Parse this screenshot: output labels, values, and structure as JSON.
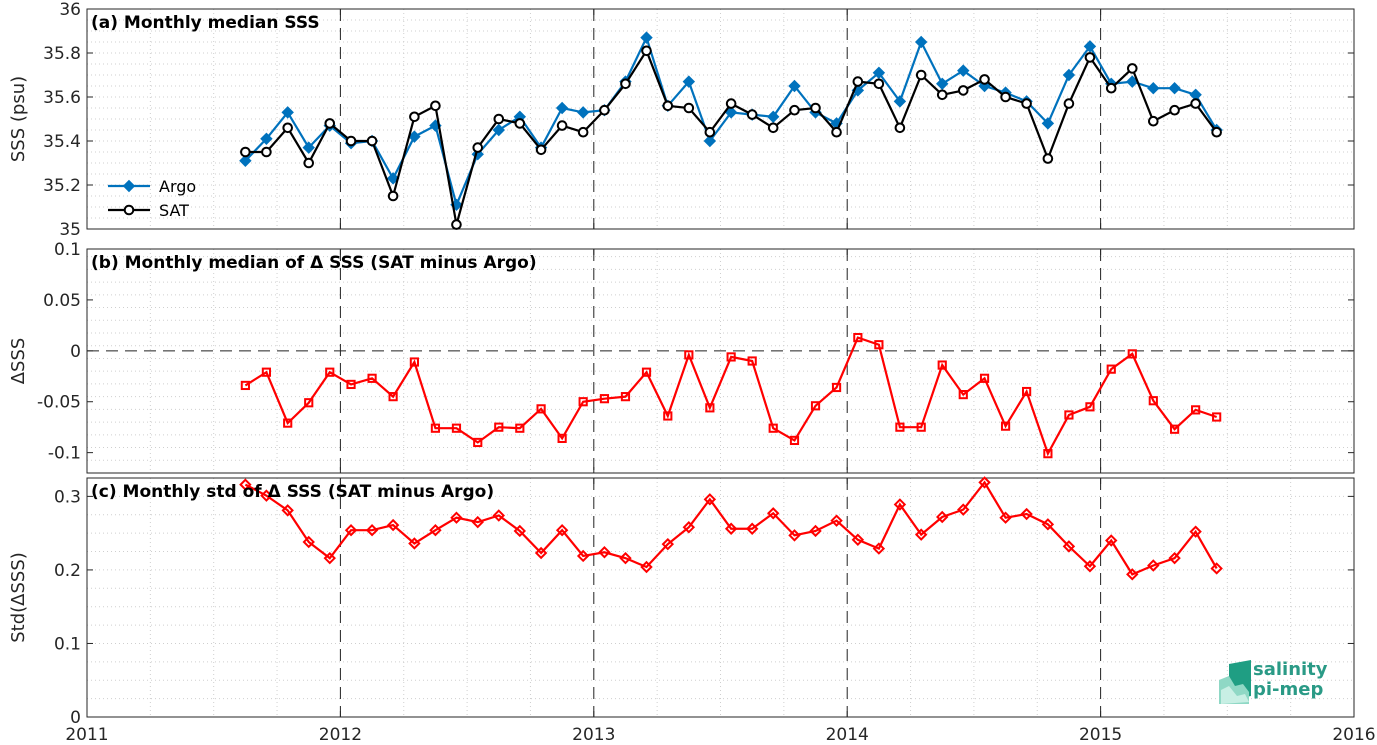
{
  "chart_data": [
    {
      "type": "line",
      "title": "(a) Monthly median SSS",
      "ylabel": "SSS (psu)",
      "xlim": [
        2011,
        2016
      ],
      "ylim": [
        35,
        36
      ],
      "yticks": [
        35,
        35.2,
        35.4,
        35.6,
        35.8,
        36
      ],
      "ytick_labels": [
        "35",
        "35.2",
        "35.4",
        "35.6",
        "35.8",
        "36"
      ],
      "grid": true,
      "legend": "bottom-left",
      "series": [
        {
          "name": "Argo",
          "color": "#0072bd",
          "marker": "diamond",
          "x": [
            2011.625,
            2011.708,
            2011.792,
            2011.875,
            2011.958,
            2012.042,
            2012.125,
            2012.208,
            2012.292,
            2012.375,
            2012.458,
            2012.542,
            2012.625,
            2012.708,
            2012.792,
            2012.875,
            2012.958,
            2013.042,
            2013.125,
            2013.208,
            2013.292,
            2013.375,
            2013.458,
            2013.542,
            2013.625,
            2013.708,
            2013.792,
            2013.875,
            2013.958,
            2014.042,
            2014.125,
            2014.208,
            2014.292,
            2014.375,
            2014.458,
            2014.542,
            2014.625,
            2014.708,
            2014.792,
            2014.875,
            2014.958,
            2015.042,
            2015.125,
            2015.208,
            2015.292,
            2015.375,
            2015.458
          ],
          "values": [
            35.31,
            35.41,
            35.53,
            35.37,
            35.47,
            35.39,
            35.4,
            35.23,
            35.42,
            35.47,
            35.11,
            35.34,
            35.45,
            35.51,
            35.37,
            35.55,
            35.53,
            35.54,
            35.67,
            35.87,
            35.56,
            35.67,
            35.4,
            35.53,
            35.52,
            35.51,
            35.65,
            35.53,
            35.48,
            35.63,
            35.71,
            35.58,
            35.85,
            35.66,
            35.72,
            35.65,
            35.62,
            35.58,
            35.48,
            35.7,
            35.83,
            35.66,
            35.67,
            35.64,
            35.64,
            35.61,
            35.45
          ]
        },
        {
          "name": "SAT",
          "color": "#000000",
          "marker": "circle",
          "x": [
            2011.625,
            2011.708,
            2011.792,
            2011.875,
            2011.958,
            2012.042,
            2012.125,
            2012.208,
            2012.292,
            2012.375,
            2012.458,
            2012.542,
            2012.625,
            2012.708,
            2012.792,
            2012.875,
            2012.958,
            2013.042,
            2013.125,
            2013.208,
            2013.292,
            2013.375,
            2013.458,
            2013.542,
            2013.625,
            2013.708,
            2013.792,
            2013.875,
            2013.958,
            2014.042,
            2014.125,
            2014.208,
            2014.292,
            2014.375,
            2014.458,
            2014.542,
            2014.625,
            2014.708,
            2014.792,
            2014.875,
            2014.958,
            2015.042,
            2015.125,
            2015.208,
            2015.292,
            2015.375,
            2015.458
          ],
          "values": [
            35.35,
            35.35,
            35.46,
            35.3,
            35.48,
            35.4,
            35.4,
            35.15,
            35.51,
            35.56,
            35.02,
            35.37,
            35.5,
            35.48,
            35.36,
            35.47,
            35.44,
            35.54,
            35.66,
            35.81,
            35.56,
            35.55,
            35.44,
            35.57,
            35.52,
            35.46,
            35.54,
            35.55,
            35.44,
            35.67,
            35.66,
            35.46,
            35.7,
            35.61,
            35.63,
            35.68,
            35.6,
            35.57,
            35.32,
            35.57,
            35.78,
            35.64,
            35.73,
            35.49,
            35.54,
            35.57,
            35.44
          ]
        }
      ]
    },
    {
      "type": "line",
      "title": "(b) Monthly median of Δ SSS (SAT minus Argo)",
      "ylabel": "ΔSSS",
      "xlim": [
        2011,
        2016
      ],
      "ylim": [
        -0.12,
        0.1
      ],
      "yticks": [
        -0.1,
        -0.05,
        0,
        0.05,
        0.1
      ],
      "ytick_labels": [
        "-0.1",
        "-0.05",
        "0",
        "0.05",
        "0.1"
      ],
      "grid": true,
      "series": [
        {
          "color": "#ff0000",
          "marker": "square",
          "x": [
            2011.625,
            2011.708,
            2011.792,
            2011.875,
            2011.958,
            2012.042,
            2012.125,
            2012.208,
            2012.292,
            2012.375,
            2012.458,
            2012.542,
            2012.625,
            2012.708,
            2012.792,
            2012.875,
            2012.958,
            2013.042,
            2013.125,
            2013.208,
            2013.292,
            2013.375,
            2013.458,
            2013.542,
            2013.625,
            2013.708,
            2013.792,
            2013.875,
            2013.958,
            2014.042,
            2014.125,
            2014.208,
            2014.292,
            2014.375,
            2014.458,
            2014.542,
            2014.625,
            2014.708,
            2014.792,
            2014.875,
            2014.958,
            2015.042,
            2015.125,
            2015.208,
            2015.292,
            2015.375,
            2015.458
          ],
          "values": [
            -0.034,
            -0.021,
            -0.071,
            -0.051,
            -0.021,
            -0.033,
            -0.027,
            -0.045,
            -0.011,
            -0.076,
            -0.076,
            -0.09,
            -0.075,
            -0.076,
            -0.057,
            -0.086,
            -0.05,
            -0.047,
            -0.045,
            -0.021,
            -0.064,
            -0.004,
            -0.056,
            -0.006,
            -0.01,
            -0.076,
            -0.088,
            -0.054,
            -0.036,
            0.013,
            0.006,
            -0.075,
            -0.075,
            -0.014,
            -0.043,
            -0.027,
            -0.074,
            -0.04,
            -0.101,
            -0.063,
            -0.055,
            -0.018,
            -0.003,
            -0.049,
            -0.077,
            -0.058,
            -0.065
          ]
        }
      ]
    },
    {
      "type": "line",
      "title": "(c) Monthly std of Δ SSS (SAT minus Argo)",
      "ylabel": "Std(ΔSSS)",
      "xlim": [
        2011,
        2016
      ],
      "ylim": [
        0,
        0.325
      ],
      "yticks": [
        0,
        0.1,
        0.2,
        0.3
      ],
      "ytick_labels": [
        "0",
        "0.1",
        "0.2",
        "0.3"
      ],
      "xticks": [
        2011,
        2012,
        2013,
        2014,
        2015,
        2016
      ],
      "xtick_labels": [
        "2011",
        "2012",
        "2013",
        "2014",
        "2015",
        "2016"
      ],
      "grid": true,
      "series": [
        {
          "color": "#ff0000",
          "marker": "diamond",
          "x": [
            2011.625,
            2011.708,
            2011.792,
            2011.875,
            2011.958,
            2012.042,
            2012.125,
            2012.208,
            2012.292,
            2012.375,
            2012.458,
            2012.542,
            2012.625,
            2012.708,
            2012.792,
            2012.875,
            2012.958,
            2013.042,
            2013.125,
            2013.208,
            2013.292,
            2013.375,
            2013.458,
            2013.542,
            2013.625,
            2013.708,
            2013.792,
            2013.875,
            2013.958,
            2014.042,
            2014.125,
            2014.208,
            2014.292,
            2014.375,
            2014.458,
            2014.542,
            2014.625,
            2014.708,
            2014.792,
            2014.875,
            2014.958,
            2015.042,
            2015.125,
            2015.208,
            2015.292,
            2015.375,
            2015.458
          ],
          "values": [
            0.316,
            0.301,
            0.281,
            0.238,
            0.216,
            0.254,
            0.254,
            0.261,
            0.236,
            0.254,
            0.271,
            0.265,
            0.274,
            0.253,
            0.223,
            0.254,
            0.219,
            0.224,
            0.216,
            0.204,
            0.235,
            0.258,
            0.296,
            0.256,
            0.256,
            0.277,
            0.247,
            0.253,
            0.267,
            0.241,
            0.229,
            0.289,
            0.248,
            0.272,
            0.282,
            0.319,
            0.271,
            0.276,
            0.262,
            0.232,
            0.205,
            0.24,
            0.194,
            0.206,
            0.216,
            0.252,
            0.202
          ]
        }
      ]
    }
  ],
  "logo": {
    "line1": "salinity",
    "line2": "pi-mep"
  }
}
